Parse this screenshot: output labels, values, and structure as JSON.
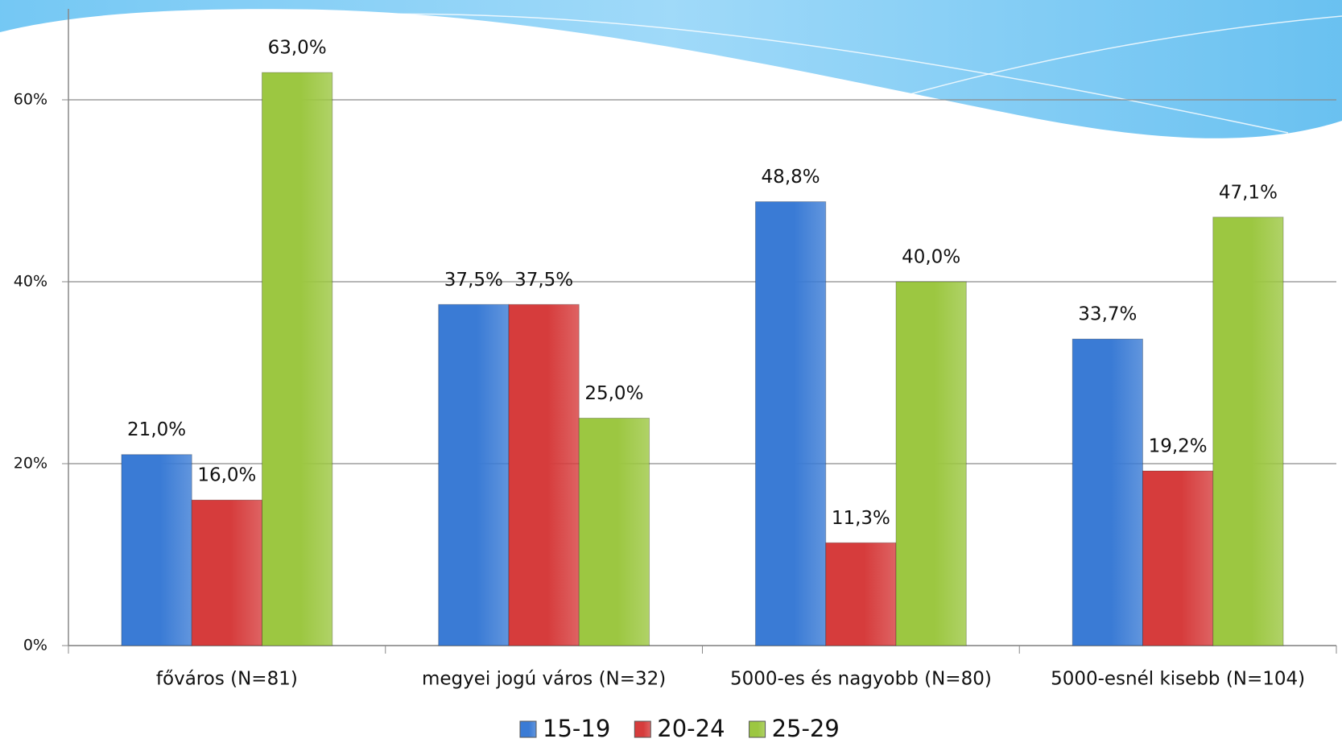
{
  "chart_data": {
    "type": "bar",
    "categories": [
      "főváros (N=81)",
      "megyei jogú város (N=32)",
      "5000-es és nagyobb (N=80)",
      "5000-esnél kisebb (N=104)"
    ],
    "series": [
      {
        "name": "15-19",
        "color": "#3a7bd5",
        "values": [
          21.0,
          37.5,
          48.8,
          33.7
        ],
        "value_labels": [
          "21,0%",
          "37,5%",
          "48,8%",
          "33,7%"
        ]
      },
      {
        "name": "20-24",
        "color": "#d63c3c",
        "values": [
          16.0,
          37.5,
          11.3,
          19.2
        ],
        "value_labels": [
          "16,0%",
          "37,5%",
          "11,3%",
          "19,2%"
        ]
      },
      {
        "name": "25-29",
        "color": "#9cc741",
        "values": [
          63.0,
          25.0,
          40.0,
          47.1
        ],
        "value_labels": [
          "63,0%",
          "25,0%",
          "40,0%",
          "47,1%"
        ]
      }
    ],
    "ylim": [
      0,
      70
    ],
    "yticks": [
      {
        "value": 0,
        "label": "0%"
      },
      {
        "value": 20,
        "label": "20%"
      },
      {
        "value": 40,
        "label": "40%"
      },
      {
        "value": 60,
        "label": "60%"
      }
    ],
    "grid": true
  }
}
